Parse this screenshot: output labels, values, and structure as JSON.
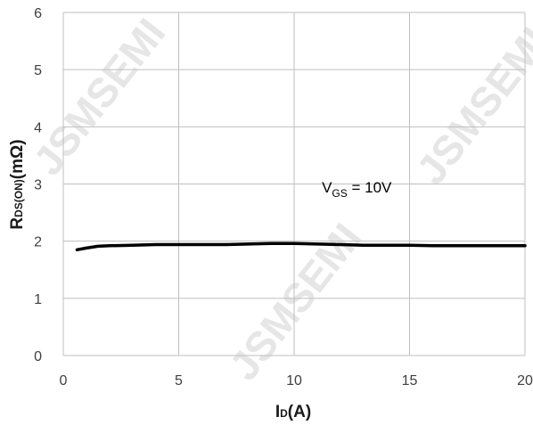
{
  "watermark": "JSMSEMI",
  "chart_data": {
    "type": "line",
    "x_ticks": [
      "0",
      "5",
      "10",
      "15",
      "20"
    ],
    "y_ticks": [
      "0",
      "1",
      "2",
      "3",
      "4",
      "5",
      "6"
    ],
    "xlim": [
      0,
      20
    ],
    "ylim": [
      0,
      6
    ],
    "grid": true,
    "xlabel": {
      "main": "I",
      "sub": "D",
      "tail": "(A)"
    },
    "ylabel": {
      "main": "R",
      "sub": "DS(ON)",
      "tail": "(mΩ)"
    },
    "annotation": {
      "main": "V",
      "sub": "GS",
      "tail": " = 10V",
      "x": 11.2,
      "y": 2.85
    },
    "series": [
      {
        "color": "#000000",
        "x": [
          0.6,
          1.0,
          1.5,
          2.0,
          3.0,
          4.0,
          5.0,
          6.0,
          7.0,
          8.0,
          9.0,
          10.0,
          11.0,
          12.0,
          13.0,
          14.0,
          15.0,
          16.0,
          17.0,
          18.0,
          19.0,
          20.0
        ],
        "y": [
          1.85,
          1.88,
          1.91,
          1.92,
          1.93,
          1.94,
          1.94,
          1.94,
          1.94,
          1.95,
          1.96,
          1.96,
          1.95,
          1.94,
          1.93,
          1.93,
          1.93,
          1.92,
          1.92,
          1.92,
          1.92,
          1.92
        ]
      }
    ]
  }
}
